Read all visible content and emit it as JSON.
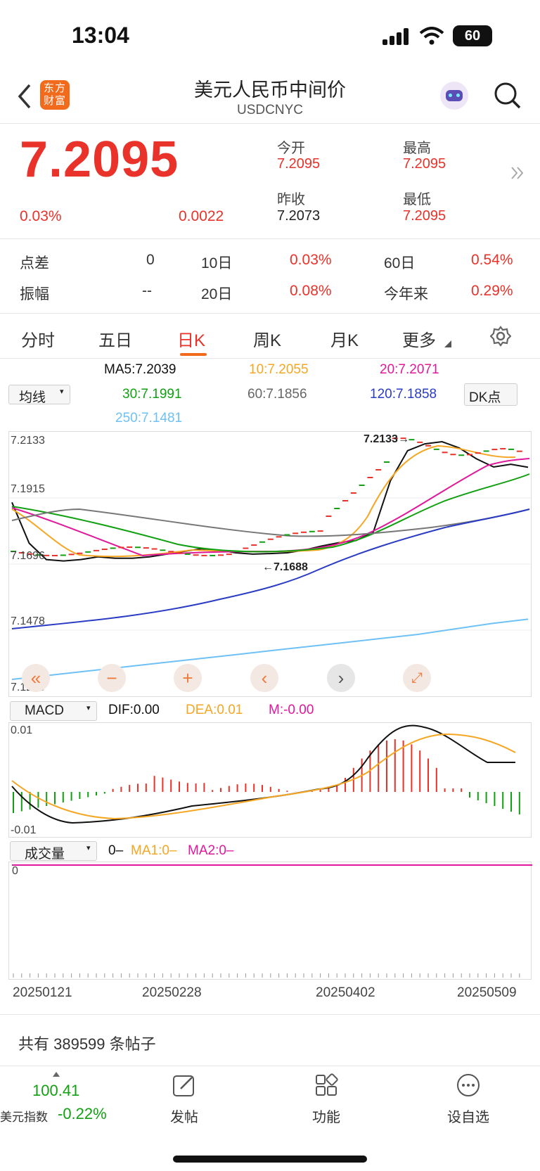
{
  "status_bar": {
    "time": "13:04",
    "battery": "60"
  },
  "header": {
    "back_icon": "chevron-left-icon",
    "logo_text": "东方财富",
    "title": "美元人民币中间价",
    "code": "USDCNYC"
  },
  "quote": {
    "price": "7.2095",
    "change_pct": "0.03%",
    "change": "0.0022",
    "open_label": "今开",
    "open": "7.2095",
    "prev_close_label": "昨收",
    "prev_close": "7.2073",
    "high_label": "最高",
    "high": "7.2095",
    "low_label": "最低",
    "low": "7.2095"
  },
  "stats": {
    "spread_label": "点差",
    "spread": "0",
    "amplitude_label": "振幅",
    "amplitude": "--",
    "d10_label": "10日",
    "d10": "0.03%",
    "d20_label": "20日",
    "d20": "0.08%",
    "d60_label": "60日",
    "d60": "0.54%",
    "ytd_label": "今年来",
    "ytd": "0.29%"
  },
  "tabs": [
    "分时",
    "五日",
    "日K",
    "周K",
    "月K",
    "更多"
  ],
  "active_tab": "日K",
  "ma_selector": "均线",
  "dk_button": "DK点",
  "ma_values": {
    "ma5": "MA5:7.2039",
    "ma10": "10:7.2055",
    "ma20": "20:7.2071",
    "ma30": "30:7.1991",
    "ma60": "60:7.1856",
    "ma120": "120:7.1858",
    "ma250": "250:7.1481"
  },
  "colors": {
    "ma5": "#111111",
    "ma10": "#f5a623",
    "ma20": "#e0199a",
    "ma30": "#12a012",
    "ma60": "#777777",
    "ma120": "#2b3cc4",
    "ma250": "#6ec1f5",
    "up": "#e8322a",
    "down": "#12a012"
  },
  "price_axis": [
    "7.2133",
    "7.1915",
    "7.1696",
    "7.1478",
    "7.1260"
  ],
  "annotations": {
    "high_mark": "7.2133",
    "low_mark": "7.1688"
  },
  "macd": {
    "selector": "MACD",
    "dif": "DIF:0.00",
    "dea": "DEA:0.01",
    "m": "M:-0.00",
    "axis_top": "0.01",
    "axis_bottom": "-0.01"
  },
  "volume": {
    "selector": "成交量",
    "value": "0",
    "ma1": "MA1:0",
    "ma2": "MA2:0",
    "axis": "0"
  },
  "x_axis": [
    "20250121",
    "20250228",
    "20250402",
    "20250509"
  ],
  "chart_data": {
    "type": "line",
    "title": "",
    "y_axis_ticks": [
      7.2133,
      7.1915,
      7.1696,
      7.1478,
      7.126
    ],
    "x_labels": [
      "20250121",
      "20250228",
      "20250402",
      "20250509"
    ],
    "series": [
      {
        "name": "MA5",
        "values": [
          7.191,
          7.176,
          7.17,
          7.1695,
          7.17,
          7.171,
          7.1705,
          7.1705,
          7.171,
          7.172,
          7.173,
          7.174,
          7.1735,
          7.1725,
          7.172,
          7.1722,
          7.1725,
          7.1735,
          7.175,
          7.1762,
          7.177,
          7.18,
          7.199,
          7.21,
          7.2125,
          7.2133,
          7.211,
          7.207,
          7.204,
          7.205,
          7.2039
        ]
      },
      {
        "name": "MA250",
        "values": [
          7.126,
          7.1275,
          7.129,
          7.1305,
          7.132,
          7.1335,
          7.135,
          7.1365,
          7.138,
          7.1395,
          7.141,
          7.1425,
          7.1445,
          7.1465,
          7.1481
        ]
      }
    ],
    "ylim": [
      7.126,
      7.2133
    ]
  },
  "posts": {
    "count_text": "共有 389599 条帖子"
  },
  "bottom_bar": {
    "index_value": "100.41",
    "index_name": "美元指数",
    "index_change": "-0.22%",
    "post_label": "发帖",
    "function_label": "功能",
    "watch_label": "设自选"
  }
}
